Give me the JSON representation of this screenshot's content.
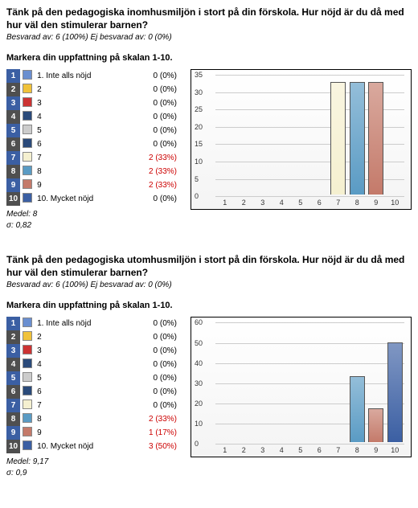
{
  "sections": [
    {
      "title": "Tänk på den pedagogiska inomhusmiljön i stort på din förskola. Hur nöjd är du då med hur väl den stimulerar barnen?",
      "meta": "Besvarad av: 6 (100%) Ej besvarad av: 0 (0%)",
      "instruction": "Markera din uppfattning på skalan 1-10.",
      "rows": [
        {
          "num": "1",
          "numbg": "#3b5fa3",
          "swatch": "#6a8fd0",
          "label": "1. Inte alls nöjd",
          "val": "0 (0%)",
          "hl": false,
          "barval": 0
        },
        {
          "num": "2",
          "numbg": "#4f4f4f",
          "swatch": "#f0c23a",
          "label": "2",
          "val": "0 (0%)",
          "hl": false,
          "barval": 0
        },
        {
          "num": "3",
          "numbg": "#3b5fa3",
          "swatch": "#cc3333",
          "label": "3",
          "val": "0 (0%)",
          "hl": false,
          "barval": 0
        },
        {
          "num": "4",
          "numbg": "#4f4f4f",
          "swatch": "#2a4a7a",
          "label": "4",
          "val": "0 (0%)",
          "hl": false,
          "barval": 0
        },
        {
          "num": "5",
          "numbg": "#3b5fa3",
          "swatch": "#cccccc",
          "label": "5",
          "val": "0 (0%)",
          "hl": false,
          "barval": 0
        },
        {
          "num": "6",
          "numbg": "#4f4f4f",
          "swatch": "#2a4a7a",
          "label": "6",
          "val": "0 (0%)",
          "hl": false,
          "barval": 0
        },
        {
          "num": "7",
          "numbg": "#3b5fa3",
          "swatch": "#f5f0d0",
          "label": "7",
          "val": "2 (33%)",
          "hl": true,
          "barval": 33
        },
        {
          "num": "8",
          "numbg": "#4f4f4f",
          "swatch": "#5a9bc4",
          "label": "8",
          "val": "2 (33%)",
          "hl": true,
          "barval": 33
        },
        {
          "num": "9",
          "numbg": "#3b5fa3",
          "swatch": "#c47a6a",
          "label": "9",
          "val": "2 (33%)",
          "hl": true,
          "barval": 33
        },
        {
          "num": "10",
          "numbg": "#4f4f4f",
          "swatch": "#3b5fa3",
          "label": "10. Mycket nöjd",
          "val": "0 (0%)",
          "hl": false,
          "barval": 0
        }
      ],
      "stats_mean_label": "Medel:",
      "stats_mean": "8",
      "stats_sigma_label": "σ:",
      "stats_sigma": "0,82",
      "chart": {
        "ymax": 35,
        "ystep": 5
      }
    },
    {
      "title": "Tänk på den pedagogiska utomhusmiljön i stort på din förskola. Hur nöjd är du då med hur väl den stimulerar barnen?",
      "meta": "Besvarad av: 6 (100%) Ej besvarad av: 0 (0%)",
      "instruction": "Markera din uppfattning på skalan 1-10.",
      "rows": [
        {
          "num": "1",
          "numbg": "#3b5fa3",
          "swatch": "#6a8fd0",
          "label": "1. Inte alls nöjd",
          "val": "0 (0%)",
          "hl": false,
          "barval": 0
        },
        {
          "num": "2",
          "numbg": "#4f4f4f",
          "swatch": "#f0c23a",
          "label": "2",
          "val": "0 (0%)",
          "hl": false,
          "barval": 0
        },
        {
          "num": "3",
          "numbg": "#3b5fa3",
          "swatch": "#cc3333",
          "label": "3",
          "val": "0 (0%)",
          "hl": false,
          "barval": 0
        },
        {
          "num": "4",
          "numbg": "#4f4f4f",
          "swatch": "#2a4a7a",
          "label": "4",
          "val": "0 (0%)",
          "hl": false,
          "barval": 0
        },
        {
          "num": "5",
          "numbg": "#3b5fa3",
          "swatch": "#cccccc",
          "label": "5",
          "val": "0 (0%)",
          "hl": false,
          "barval": 0
        },
        {
          "num": "6",
          "numbg": "#4f4f4f",
          "swatch": "#2a4a7a",
          "label": "6",
          "val": "0 (0%)",
          "hl": false,
          "barval": 0
        },
        {
          "num": "7",
          "numbg": "#3b5fa3",
          "swatch": "#f5f0d0",
          "label": "7",
          "val": "0 (0%)",
          "hl": false,
          "barval": 0
        },
        {
          "num": "8",
          "numbg": "#4f4f4f",
          "swatch": "#5a9bc4",
          "label": "8",
          "val": "2 (33%)",
          "hl": true,
          "barval": 33
        },
        {
          "num": "9",
          "numbg": "#3b5fa3",
          "swatch": "#c47a6a",
          "label": "9",
          "val": "1 (17%)",
          "hl": true,
          "barval": 17
        },
        {
          "num": "10",
          "numbg": "#4f4f4f",
          "swatch": "#3b5fa3",
          "label": "10. Mycket nöjd",
          "val": "3 (50%)",
          "hl": true,
          "barval": 50
        }
      ],
      "stats_mean_label": "Medel:",
      "stats_mean": "9,17",
      "stats_sigma_label": "σ:",
      "stats_sigma": "0,9",
      "chart": {
        "ymax": 60,
        "ystep": 10
      }
    }
  ]
}
